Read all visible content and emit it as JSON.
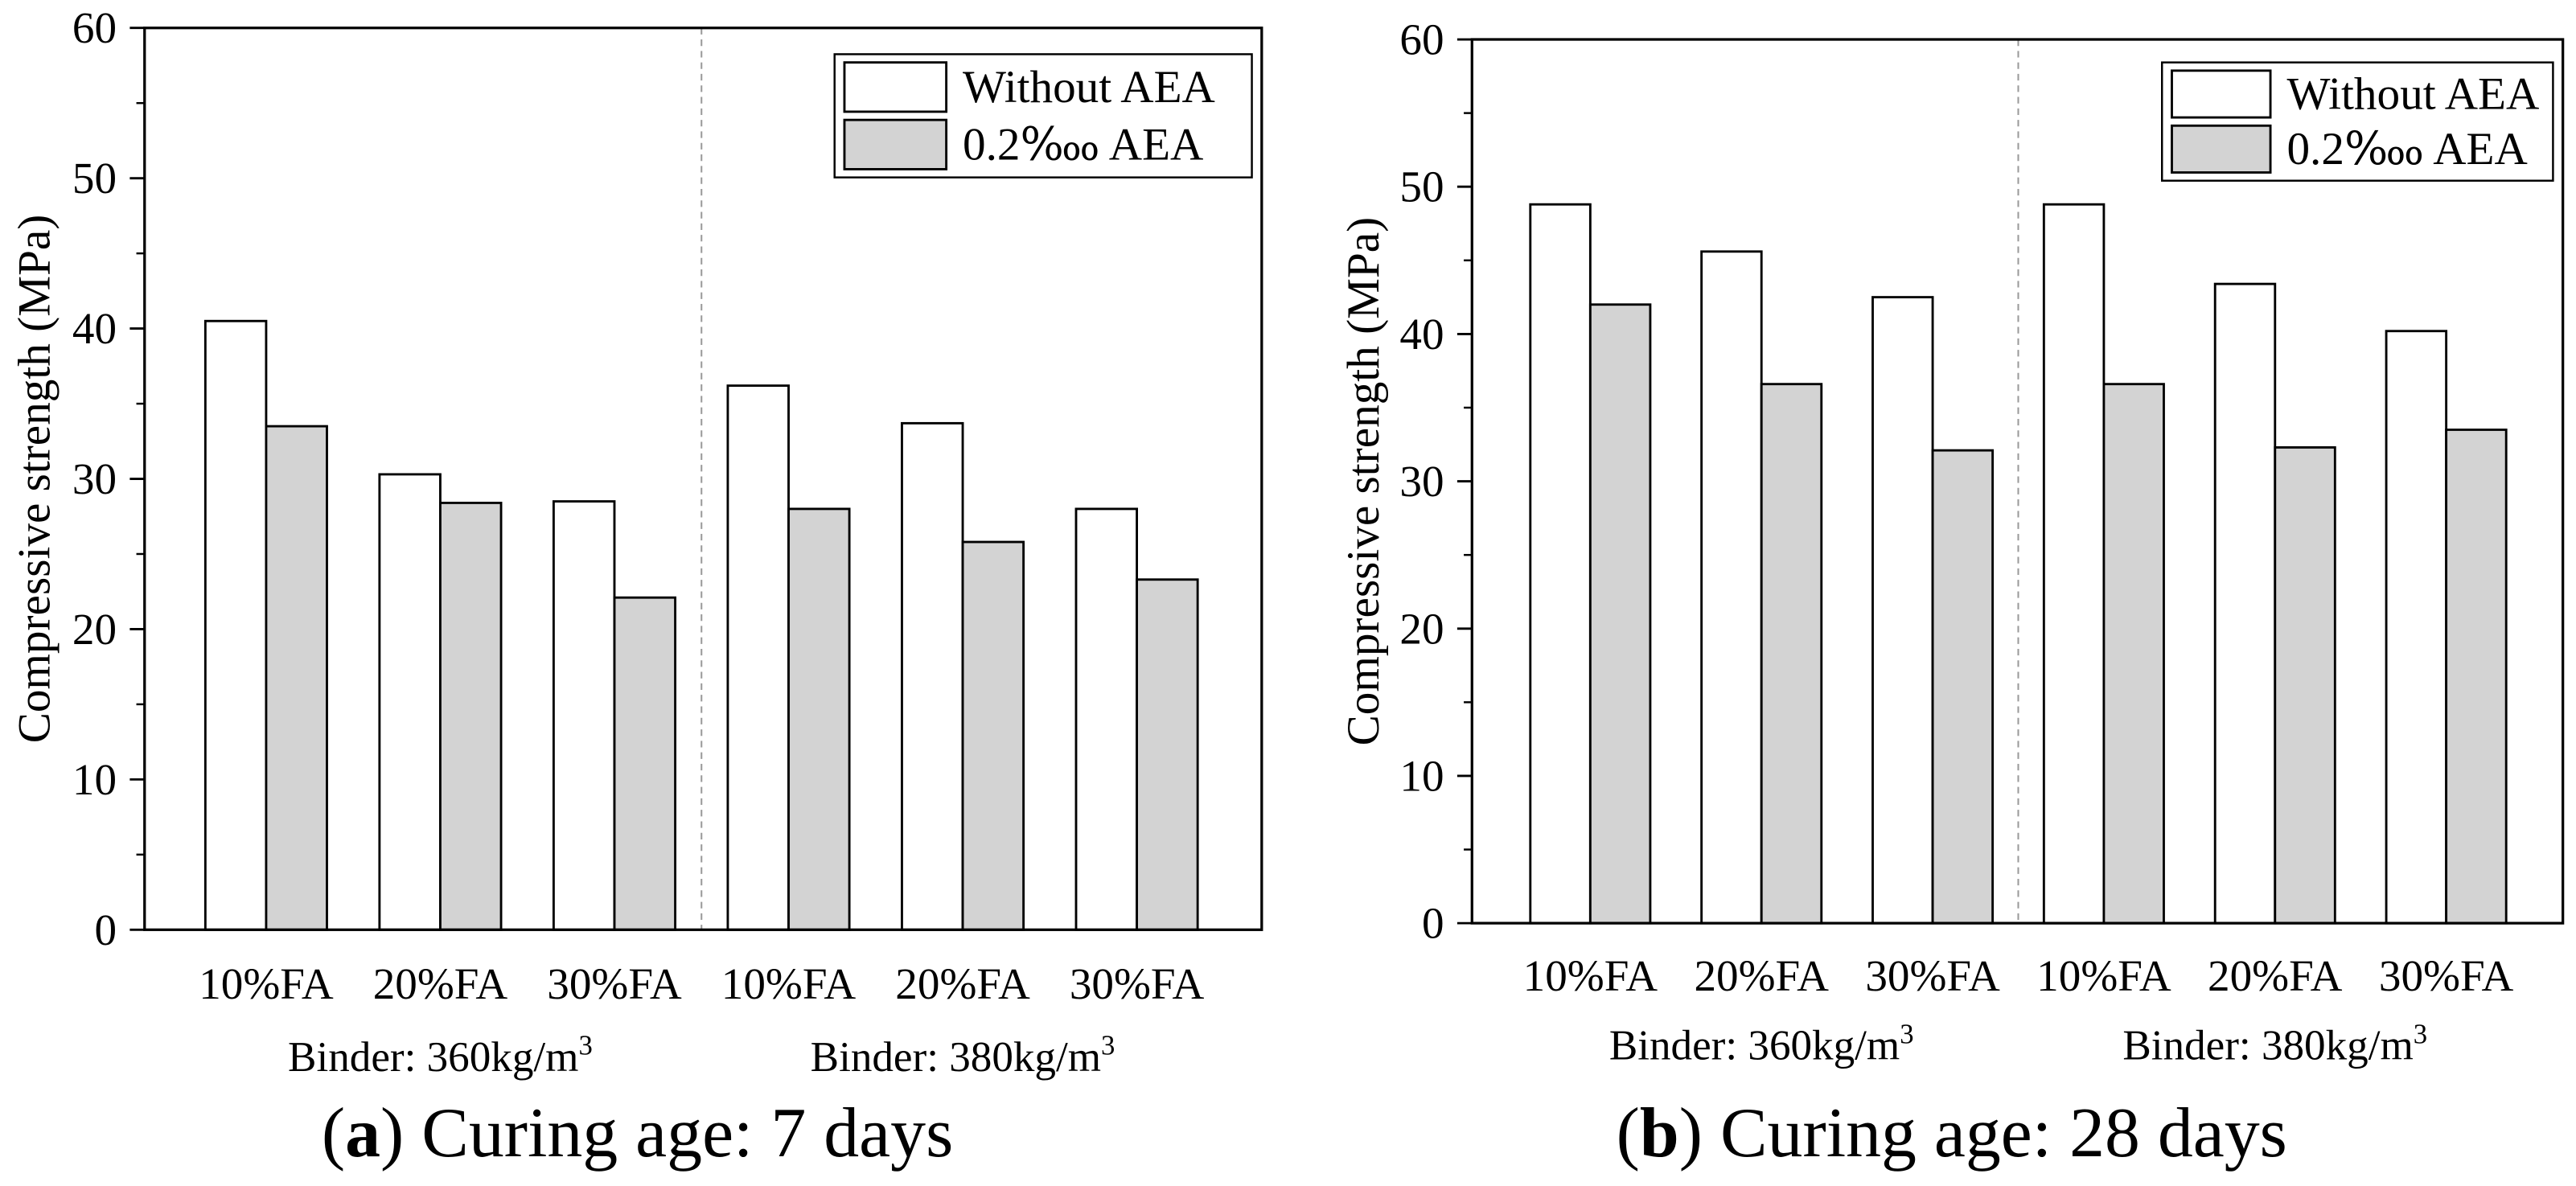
{
  "colors": {
    "background": "#ffffff",
    "axis": "#000000",
    "divider": "#9a9a9a"
  },
  "chart_data": [
    {
      "type": "bar",
      "title": {
        "open": "(",
        "letter": "a",
        "rest": ") Curing age: 7 days"
      },
      "ylabel": "Compressive strength (MPa)",
      "ylim": [
        0,
        60
      ],
      "yticks": [
        0,
        10,
        20,
        30,
        40,
        50,
        60
      ],
      "grid": false,
      "legend_position": "top-right",
      "categories": [
        "10%FA",
        "20%FA",
        "30%FA",
        "10%FA",
        "20%FA",
        "30%FA"
      ],
      "group_labels": [
        {
          "text": "Binder: 360kg/m",
          "sup": "3",
          "span": 3
        },
        {
          "text": "Binder: 380kg/m",
          "sup": "3",
          "span": 3
        }
      ],
      "series": [
        {
          "name": "Without AEA",
          "color": "#ffffff",
          "values": [
            40.5,
            30.3,
            28.5,
            36.2,
            33.7,
            28.0
          ]
        },
        {
          "name": "0.2‱ AEA",
          "color": "#d3d3d3",
          "values": [
            33.5,
            28.4,
            22.1,
            28.0,
            25.8,
            23.3
          ]
        }
      ]
    },
    {
      "type": "bar",
      "title": {
        "open": "(",
        "letter": "b",
        "rest": ") Curing age: 28 days"
      },
      "ylabel": "Compressive strength (MPa)",
      "ylim": [
        0,
        60
      ],
      "yticks": [
        0,
        10,
        20,
        30,
        40,
        50,
        60
      ],
      "grid": false,
      "legend_position": "top-right",
      "categories": [
        "10%FA",
        "20%FA",
        "30%FA",
        "10%FA",
        "20%FA",
        "30%FA"
      ],
      "group_labels": [
        {
          "text": "Binder: 360kg/m",
          "sup": "3",
          "span": 3
        },
        {
          "text": "Binder: 380kg/m",
          "sup": "3",
          "span": 3
        }
      ],
      "series": [
        {
          "name": "Without AEA",
          "color": "#ffffff",
          "values": [
            48.8,
            45.6,
            42.5,
            48.8,
            43.4,
            40.2
          ]
        },
        {
          "name": "0.2‱ AEA",
          "color": "#d3d3d3",
          "values": [
            42.0,
            36.6,
            32.1,
            36.6,
            32.3,
            33.5
          ]
        }
      ]
    }
  ]
}
